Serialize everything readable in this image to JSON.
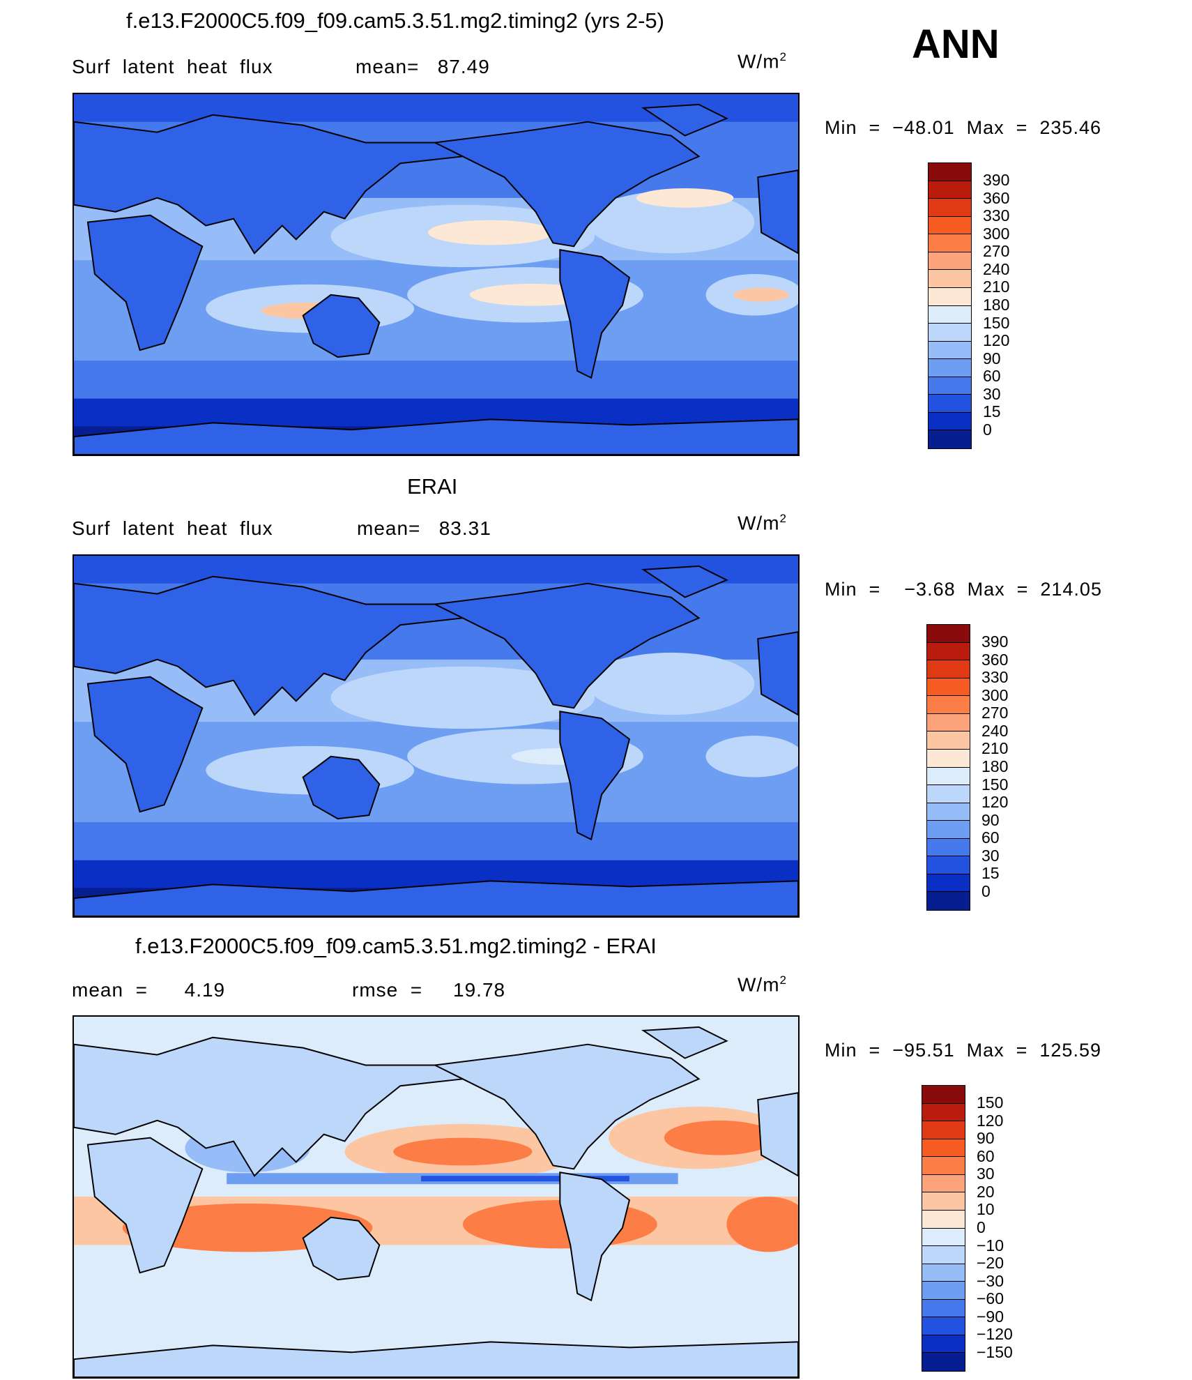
{
  "season": "ANN",
  "panels": [
    {
      "id": "model",
      "title": "f.e13.F2000C5.f09_f09.cam5.3.51.mg2.timing2 (yrs 2-5)",
      "stat_left": "Surf  latent  heat  flux",
      "stat_right": "mean=   87.49",
      "units_base": "W/m",
      "units_exp": "2",
      "minmax": "Min  =  −48.01  Max  =  235.46",
      "levels": [
        "390",
        "360",
        "330",
        "300",
        "270",
        "240",
        "210",
        "180",
        "150",
        "120",
        "90",
        "60",
        "30",
        "15",
        "0"
      ],
      "colors": [
        "#8a0b0b",
        "#b91c0d",
        "#df3a13",
        "#f65b22",
        "#fc7e46",
        "#fda37b",
        "#fdc6a3",
        "#fde8d6",
        "#ddecfb",
        "#bcd7fa",
        "#96bdf7",
        "#6d9ef2",
        "#4679ec",
        "#2452e0",
        "#0a2fc4",
        "#061e8f"
      ],
      "mean": 87.49,
      "min": -48.01,
      "max": 235.46,
      "map_field": {
        "ocean": "#bcd7fa",
        "land": "#2f62e6"
      }
    },
    {
      "id": "obs",
      "title": "ERAI",
      "stat_left": "Surf  latent  heat  flux",
      "stat_right": "mean=   83.31",
      "units_base": "W/m",
      "units_exp": "2",
      "minmax": "Min  =    −3.68  Max  =  214.05",
      "levels": [
        "390",
        "360",
        "330",
        "300",
        "270",
        "240",
        "210",
        "180",
        "150",
        "120",
        "90",
        "60",
        "30",
        "15",
        "0"
      ],
      "colors": [
        "#8a0b0b",
        "#b91c0d",
        "#df3a13",
        "#f65b22",
        "#fc7e46",
        "#fda37b",
        "#fdc6a3",
        "#fde8d6",
        "#ddecfb",
        "#bcd7fa",
        "#96bdf7",
        "#6d9ef2",
        "#4679ec",
        "#2452e0",
        "#0a2fc4",
        "#061e8f"
      ],
      "mean": 83.31,
      "min": -3.68,
      "max": 214.05,
      "map_field": {
        "ocean": "#bcd7fa",
        "land": "#2f62e6"
      }
    },
    {
      "id": "diff",
      "title": "f.e13.F2000C5.f09_f09.cam5.3.51.mg2.timing2 - ERAI",
      "stat_left": "mean  =      4.19",
      "stat_right": "rmse  =     19.78",
      "units_base": "W/m",
      "units_exp": "2",
      "minmax": "Min  =  −95.51  Max  =  125.59",
      "levels": [
        "150",
        "120",
        "90",
        "60",
        "30",
        "20",
        "10",
        "0",
        "−10",
        "−20",
        "−30",
        "−60",
        "−90",
        "−120",
        "−150"
      ],
      "colors": [
        "#8a0b0b",
        "#b91c0d",
        "#df3a13",
        "#f65b22",
        "#fc7e46",
        "#fda37b",
        "#fdc6a3",
        "#fde8d6",
        "#ddecfb",
        "#bcd7fa",
        "#96bdf7",
        "#6d9ef2",
        "#4679ec",
        "#2452e0",
        "#0a2fc4",
        "#061e8f"
      ],
      "mean": 4.19,
      "rmse": 19.78,
      "min": -95.51,
      "max": 125.59,
      "map_field": {
        "ocean": "#ddecfb",
        "land": "#bcd7fa"
      }
    }
  ]
}
